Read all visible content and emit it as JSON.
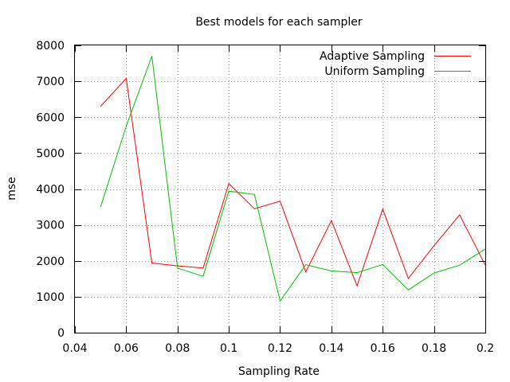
{
  "chart_data": {
    "type": "line",
    "title": "Best models for each sampler",
    "xlabel": "Sampling Rate",
    "ylabel": "mse",
    "xlim": [
      0.04,
      0.2
    ],
    "ylim": [
      0,
      8000
    ],
    "x_ticks": [
      0.04,
      0.06,
      0.08,
      0.1,
      0.12,
      0.14,
      0.16,
      0.18,
      0.2
    ],
    "x_tick_labels": [
      "0.04",
      "0.06",
      "0.08",
      "0.1",
      "0.12",
      "0.14",
      "0.16",
      "0.18",
      "0.2"
    ],
    "y_ticks": [
      0,
      1000,
      2000,
      3000,
      4000,
      5000,
      6000,
      7000,
      8000
    ],
    "y_tick_labels": [
      "0",
      "1000",
      "2000",
      "3000",
      "4000",
      "5000",
      "6000",
      "7000",
      "8000"
    ],
    "grid": true,
    "legend_position": "top-right",
    "x": [
      0.05,
      0.06,
      0.07,
      0.08,
      0.09,
      0.1,
      0.11,
      0.12,
      0.13,
      0.14,
      0.15,
      0.16,
      0.17,
      0.18,
      0.19,
      0.2
    ],
    "series": [
      {
        "name": "Adaptive Sampling",
        "color": "#ff0000",
        "values": [
          6300,
          7080,
          1940,
          1860,
          1800,
          4150,
          3450,
          3660,
          1690,
          3120,
          1300,
          3440,
          1510,
          2420,
          3280,
          1880
        ]
      },
      {
        "name": "Uniform Sampling",
        "color": "#00c000",
        "values": [
          3500,
          5750,
          7700,
          1800,
          1570,
          3940,
          3850,
          880,
          1890,
          1720,
          1670,
          1900,
          1190,
          1660,
          1880,
          2330
        ]
      }
    ]
  }
}
